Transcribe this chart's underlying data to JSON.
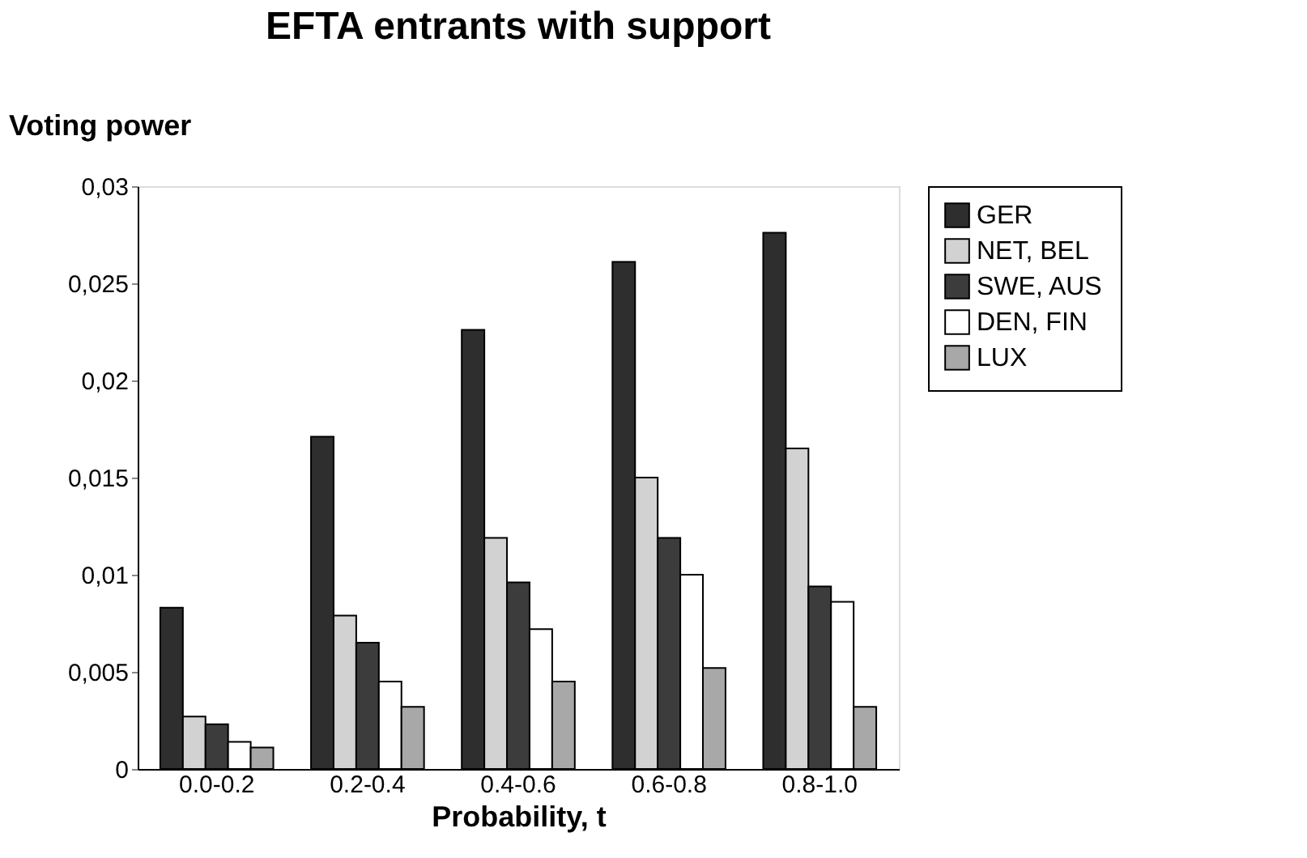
{
  "chart_data": {
    "type": "bar",
    "title": "EFTA entrants with support",
    "ylabel": "Voting power",
    "xlabel": "Probability, t",
    "categories": [
      "0.0-0.2",
      "0.2-0.4",
      "0.4-0.6",
      "0.6-0.8",
      "0.8-1.0"
    ],
    "series": [
      {
        "name": "GER",
        "color": "#2e2e2e",
        "values": [
          0.0083,
          0.0171,
          0.0226,
          0.0261,
          0.0276
        ]
      },
      {
        "name": "NET, BEL",
        "color": "#d2d2d2",
        "values": [
          0.0027,
          0.0079,
          0.0119,
          0.015,
          0.0165
        ]
      },
      {
        "name": "SWE, AUS",
        "color": "#3c3c3c",
        "values": [
          0.0023,
          0.0065,
          0.0096,
          0.0119,
          0.0094
        ]
      },
      {
        "name": "DEN, FIN",
        "color": "#ffffff",
        "values": [
          0.0014,
          0.0045,
          0.0072,
          0.01,
          0.0086
        ]
      },
      {
        "name": "LUX",
        "color": "#a8a8a8",
        "values": [
          0.0011,
          0.0032,
          0.0045,
          0.0052,
          0.0032
        ]
      }
    ],
    "ylim": [
      0,
      0.03
    ],
    "yticks": [
      0,
      {
        "value": 0.005,
        "label": "0,005"
      },
      {
        "value": 0.01,
        "label": "0,01"
      },
      {
        "value": 0.015,
        "label": "0,015"
      },
      {
        "value": 0.02,
        "label": "0,02"
      },
      {
        "value": 0.025,
        "label": "0,025"
      },
      {
        "value": 0.03,
        "label": "0,03"
      }
    ],
    "legend": "top right",
    "grid": false
  }
}
